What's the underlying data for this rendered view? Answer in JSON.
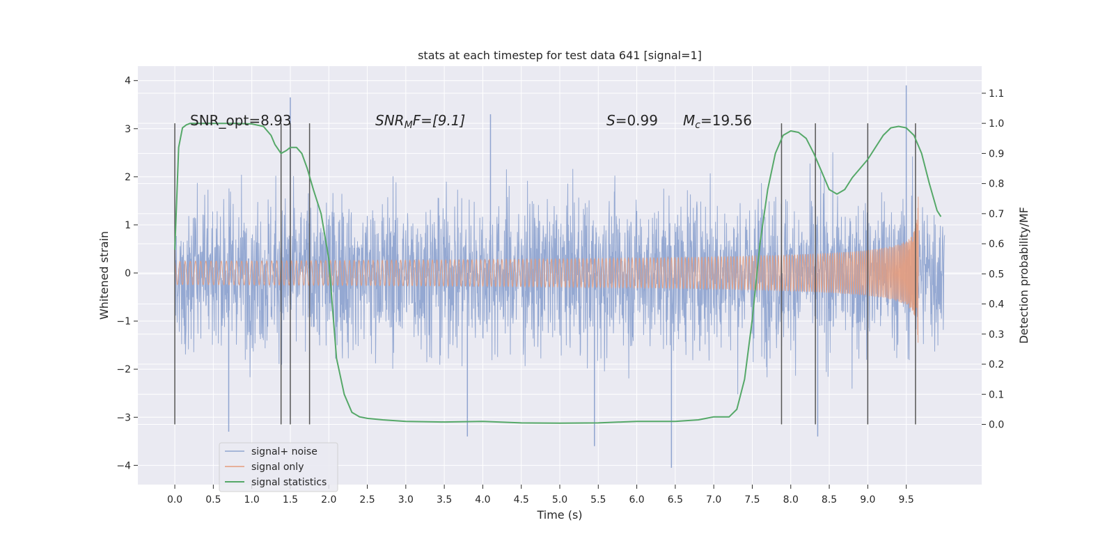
{
  "chart_data": {
    "type": "line",
    "title": "stats at each timestep for test data 641 [signal=1]",
    "xlabel": "Time (s)",
    "ylabel": "Whitened strain",
    "y2label": "Detection probability/MF",
    "xlim": [
      -0.48,
      10.48
    ],
    "ylim": [
      -4.4,
      4.3
    ],
    "y2lim": [
      -0.2,
      1.19
    ],
    "xticks": [
      "0.0",
      "0.5",
      "1.0",
      "1.5",
      "2.0",
      "2.5",
      "3.0",
      "3.5",
      "4.0",
      "4.5",
      "5.0",
      "5.5",
      "6.0",
      "6.5",
      "7.0",
      "7.5",
      "8.0",
      "8.5",
      "9.0",
      "9.5"
    ],
    "yticks": [
      "4",
      "3",
      "2",
      "1",
      "0",
      "−1",
      "−2",
      "−3",
      "−4"
    ],
    "y2ticks": [
      "1.1",
      "1.0",
      "0.9",
      "0.8",
      "0.7",
      "0.6",
      "0.5",
      "0.4",
      "0.3",
      "0.2",
      "0.1",
      "0.0"
    ],
    "grid": true,
    "legend_position": "lower-left",
    "legend": [
      "signal+ noise",
      "signal only",
      "signal statistics"
    ],
    "colors": {
      "noise": "#8fa4d0",
      "signal": "#e49c7d",
      "stats": "#55a868",
      "vlines": "#555555",
      "plot_bg": "#eaeaf2",
      "grid": "#ffffff"
    },
    "annotations": {
      "snr_opt": "SNR_opt=8.93",
      "snr_mf_prefix": "SNR",
      "snr_mf_sub": "M",
      "snr_mf_suffix": "F=[9.1]",
      "s_prefix": "S",
      "s_value": "=0.99",
      "mc_prefix": "M",
      "mc_sub": "c",
      "mc_value": "=19.56"
    },
    "vertical_lines_x": [
      0.0,
      1.38,
      1.5,
      1.75,
      7.88,
      8.32,
      9.0,
      9.62
    ],
    "signal_statistics": {
      "x": [
        0.0,
        0.05,
        0.1,
        0.15,
        0.2,
        0.3,
        0.5,
        0.8,
        1.0,
        1.15,
        1.25,
        1.3,
        1.38,
        1.45,
        1.5,
        1.58,
        1.65,
        1.72,
        1.8,
        1.9,
        2.0,
        2.05,
        2.1,
        2.2,
        2.3,
        2.4,
        2.5,
        2.7,
        3.0,
        3.5,
        4.0,
        4.5,
        5.0,
        5.5,
        6.0,
        6.5,
        6.8,
        7.0,
        7.2,
        7.3,
        7.4,
        7.5,
        7.6,
        7.7,
        7.8,
        7.9,
        8.0,
        8.1,
        8.2,
        8.3,
        8.4,
        8.5,
        8.6,
        8.7,
        8.8,
        8.9,
        9.0,
        9.1,
        9.2,
        9.3,
        9.4,
        9.5,
        9.6,
        9.7,
        9.8,
        9.9,
        9.95
      ],
      "y": [
        0.58,
        0.92,
        0.985,
        0.995,
        1.0,
        1.0,
        1.0,
        1.0,
        0.998,
        0.99,
        0.96,
        0.93,
        0.9,
        0.91,
        0.92,
        0.92,
        0.9,
        0.85,
        0.78,
        0.7,
        0.55,
        0.38,
        0.22,
        0.1,
        0.04,
        0.025,
        0.02,
        0.015,
        0.01,
        0.008,
        0.01,
        0.005,
        0.004,
        0.005,
        0.01,
        0.01,
        0.015,
        0.025,
        0.025,
        0.05,
        0.15,
        0.35,
        0.6,
        0.78,
        0.9,
        0.96,
        0.975,
        0.97,
        0.95,
        0.9,
        0.84,
        0.78,
        0.765,
        0.78,
        0.82,
        0.85,
        0.88,
        0.92,
        0.96,
        0.985,
        0.99,
        0.985,
        0.96,
        0.9,
        0.8,
        0.71,
        0.69
      ]
    },
    "signal_only": {
      "x_start": 0.0,
      "x_end": 9.66,
      "description_values": {
        "peak_amplitude": 1.8,
        "chirp_end_time": 9.66
      }
    },
    "signal_plus_noise": {
      "x_range": [
        0.0,
        10.0
      ],
      "typical_range": [
        -2.5,
        2.5
      ],
      "max": 3.9,
      "min": -4.1
    }
  }
}
